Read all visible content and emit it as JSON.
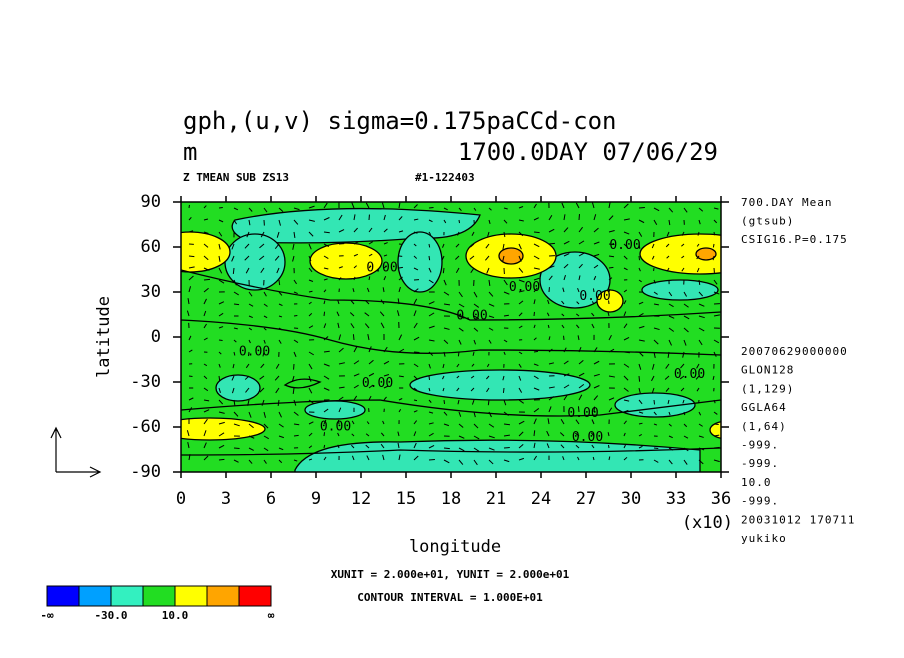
{
  "chart_data": {
    "type": "contour",
    "title": "gph,(u,v) sigma=0.175paCCd-con",
    "title_unit": "m",
    "title_time": "1700.0DAY 07/06/29",
    "subtitle_left": "Z TMEAN SUB ZS13",
    "subtitle_right": "#1-122403",
    "xlabel": "longitude",
    "ylabel": "latitude",
    "x_scale_note": "(x10)",
    "xlim": [
      0,
      36
    ],
    "xticks": [
      0,
      3,
      6,
      9,
      12,
      15,
      18,
      21,
      24,
      27,
      30,
      33,
      36
    ],
    "ylim": [
      -90,
      90
    ],
    "yticks": [
      -90,
      -60,
      -30,
      0,
      30,
      60,
      90
    ],
    "fill_color": "#22dd22",
    "contour_labels": [
      {
        "x": 4.9,
        "y": -10,
        "label": "0.00"
      },
      {
        "x": 13.1,
        "y": -31,
        "label": "0.00"
      },
      {
        "x": 10.3,
        "y": -60,
        "label": "0.00"
      },
      {
        "x": 13.4,
        "y": 46,
        "label": "0.00"
      },
      {
        "x": 19.4,
        "y": 14,
        "label": "0.00"
      },
      {
        "x": 22.9,
        "y": 33,
        "label": "0.00"
      },
      {
        "x": 27.6,
        "y": 27,
        "label": "0.00"
      },
      {
        "x": 29.6,
        "y": 61,
        "label": "0.00"
      },
      {
        "x": 33.9,
        "y": -25,
        "label": "0.00"
      },
      {
        "x": 26.8,
        "y": -51,
        "label": "0.00"
      },
      {
        "x": 27.1,
        "y": -67,
        "label": "0.00"
      }
    ],
    "info_top": [
      "700.DAY Mean",
      "(gtsub)",
      "CSIG16.P=0.175"
    ],
    "info_bottom": [
      "20070629000000",
      "GLON128",
      "(1,129)",
      "GGLA64",
      "(1,64)",
      "-999.",
      "-999.",
      "10.0",
      "-999.",
      "20031012 170711",
      "yukiko"
    ],
    "unit_note": "XUNIT = 2.000e+01, YUNIT = 2.000e+01",
    "contour_note": "CONTOUR INTERVAL = 1.000E+01",
    "colorbar": {
      "colors": [
        "#0000ff",
        "#00a0ff",
        "#33f0c0",
        "#22dd22",
        "#ffff00",
        "#ffa500",
        "#ff0000"
      ],
      "labels": [
        "-∞",
        null,
        "-30.0",
        null,
        "10.0",
        null,
        null,
        "∞"
      ]
    }
  }
}
